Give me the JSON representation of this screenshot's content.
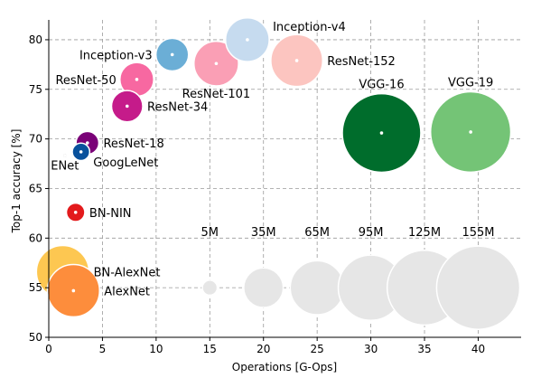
{
  "chart_data": {
    "type": "scatter",
    "xlabel": "Operations [G-Ops]",
    "ylabel": "Top-1 accuracy [%]",
    "xlim": [
      0,
      44
    ],
    "ylim": [
      50,
      82
    ],
    "x_ticks": [
      0,
      5,
      10,
      15,
      20,
      25,
      30,
      35,
      40
    ],
    "y_ticks": [
      50,
      55,
      60,
      65,
      70,
      75,
      80
    ],
    "grid": true,
    "points": [
      {
        "name": "BN-AlexNet",
        "x": 1.3,
        "y": 56.6,
        "params": 62,
        "color": "#fdc751",
        "label_side": "right",
        "label": "BN-AlexNet"
      },
      {
        "name": "AlexNet",
        "x": 2.3,
        "y": 54.7,
        "params": 61,
        "color": "#fd8d3c",
        "label_side": "right",
        "label": "AlexNet"
      },
      {
        "name": "BN-NIN",
        "x": 2.5,
        "y": 62.6,
        "params": 7.6,
        "color": "#e31a1c",
        "label_side": "right",
        "label": "BN-NIN"
      },
      {
        "name": "ENet",
        "x": 1.5,
        "y": 68.3,
        "params": 0.4,
        "color": "#000000",
        "label_side": "below",
        "label": "ENet"
      },
      {
        "name": "GoogLeNet",
        "x": 3.0,
        "y": 68.7,
        "params": 6.8,
        "color": "#08519c",
        "label_side": "right-below",
        "label": "GoogLeNet"
      },
      {
        "name": "ResNet-18",
        "x": 3.6,
        "y": 69.6,
        "params": 11.7,
        "color": "#7a0177",
        "label_side": "right",
        "label": "ResNet-18"
      },
      {
        "name": "ResNet-34",
        "x": 7.3,
        "y": 73.3,
        "params": 21.8,
        "color": "#c51b8a",
        "label_side": "right",
        "label": "ResNet-34"
      },
      {
        "name": "ResNet-50",
        "x": 8.2,
        "y": 76.0,
        "params": 25.6,
        "color": "#f768a1",
        "label_side": "left",
        "label": "ResNet-50"
      },
      {
        "name": "ResNet-101",
        "x": 15.6,
        "y": 77.6,
        "params": 44.5,
        "color": "#fa9fb5",
        "label_side": "below",
        "label": "ResNet-101"
      },
      {
        "name": "ResNet-152",
        "x": 23.1,
        "y": 77.9,
        "params": 60.2,
        "color": "#fcc5c0",
        "label_side": "right",
        "label": "ResNet-152"
      },
      {
        "name": "Inception-v3",
        "x": 11.5,
        "y": 78.5,
        "params": 23.8,
        "color": "#6baed6",
        "label_side": "left",
        "label": "Inception-v3"
      },
      {
        "name": "Inception-v4",
        "x": 18.5,
        "y": 80.0,
        "params": 42.7,
        "color": "#c6dbef",
        "label_side": "right-above",
        "label": "Inception-v4"
      },
      {
        "name": "VGG-16",
        "x": 31.0,
        "y": 70.6,
        "params": 138,
        "color": "#006d2c",
        "label_side": "above",
        "label": "VGG-16"
      },
      {
        "name": "VGG-19",
        "x": 39.3,
        "y": 70.7,
        "params": 144,
        "color": "#74c476",
        "label_side": "above",
        "label": "VGG-19"
      }
    ],
    "size_legend": {
      "y": 55,
      "items": [
        {
          "label": "5M",
          "x": 15,
          "params": 5
        },
        {
          "label": "35M",
          "x": 20,
          "params": 35
        },
        {
          "label": "65M",
          "x": 25,
          "params": 65
        },
        {
          "label": "95M",
          "x": 30,
          "params": 95
        },
        {
          "label": "125M",
          "x": 35,
          "params": 125
        },
        {
          "label": "155M",
          "x": 40,
          "params": 155
        }
      ],
      "color": "#e6e6e6"
    }
  }
}
